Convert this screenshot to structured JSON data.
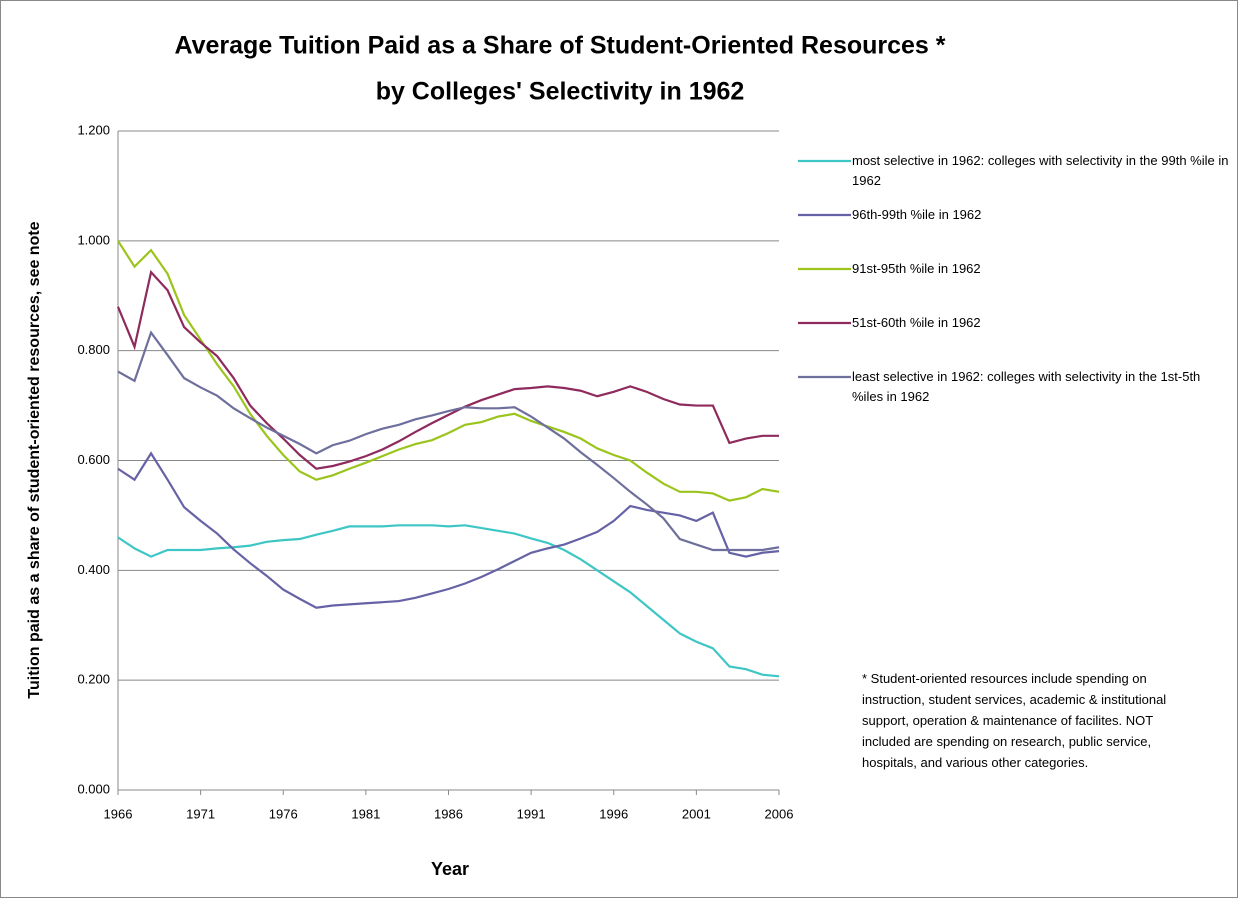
{
  "chart_data": {
    "type": "line",
    "title": "Average Tuition Paid as a Share of Student-Oriented Resources *",
    "subtitle": "by Colleges' Selectivity in 1962",
    "x_label": "Year",
    "y_label": "Tuition paid as a share of student-oriented resources, see note",
    "note": "* Student-oriented resources include spending on instruction, student services, academic & institutional support, operation & maintenance of facilites. NOT included are spending on research, public service, hospitals, and various other categories.",
    "x": [
      1966,
      1967,
      1968,
      1969,
      1970,
      1971,
      1972,
      1973,
      1974,
      1975,
      1976,
      1977,
      1978,
      1979,
      1980,
      1981,
      1982,
      1983,
      1984,
      1985,
      1986,
      1987,
      1988,
      1989,
      1990,
      1991,
      1992,
      1993,
      1994,
      1995,
      1996,
      1997,
      1998,
      1999,
      2000,
      2001,
      2002,
      2003,
      2004,
      2005,
      2006
    ],
    "xlim": [
      1966,
      2006
    ],
    "xticks": [
      1966,
      1971,
      1976,
      1981,
      1986,
      1991,
      1996,
      2001,
      2006
    ],
    "ylim": [
      0,
      1.2
    ],
    "yticks": [
      {
        "value": 0,
        "label": "0.000"
      },
      {
        "value": 0.2,
        "label": "0.200"
      },
      {
        "value": 0.4,
        "label": "0.400"
      },
      {
        "value": 0.6,
        "label": "0.600"
      },
      {
        "value": 0.8,
        "label": "0.800"
      },
      {
        "value": 1.0,
        "label": "1.000"
      },
      {
        "value": 1.2,
        "label": "1.200"
      }
    ],
    "grid": true,
    "legend": "right",
    "series": [
      {
        "name": "most selective in 1962: colleges with selectivity in the 99th %ile in 1962",
        "color": "#3ec6c6",
        "values": [
          0.46,
          0.44,
          0.425,
          0.437,
          0.437,
          0.437,
          0.44,
          0.442,
          0.445,
          0.452,
          0.455,
          0.457,
          0.465,
          0.472,
          0.48,
          0.48,
          0.48,
          0.482,
          0.482,
          0.482,
          0.48,
          0.482,
          0.477,
          0.472,
          0.467,
          0.458,
          0.45,
          0.437,
          0.42,
          0.4,
          0.38,
          0.36,
          0.335,
          0.31,
          0.285,
          0.27,
          0.258,
          0.225,
          0.22,
          0.21,
          0.207
        ]
      },
      {
        "name": "96th-99th %ile in 1962",
        "color": "#6662a6",
        "values": [
          0.585,
          0.565,
          0.613,
          0.565,
          0.515,
          0.49,
          0.467,
          0.438,
          0.413,
          0.39,
          0.365,
          0.348,
          0.332,
          0.336,
          0.338,
          0.34,
          0.342,
          0.344,
          0.35,
          0.358,
          0.366,
          0.376,
          0.388,
          0.402,
          0.417,
          0.432,
          0.44,
          0.447,
          0.458,
          0.47,
          0.49,
          0.517,
          0.51,
          0.505,
          0.5,
          0.49,
          0.505,
          0.432,
          0.425,
          0.432,
          0.435
        ]
      },
      {
        "name": "91st-95th %ile in 1962",
        "color": "#9bc41c",
        "values": [
          1.0,
          0.953,
          0.983,
          0.94,
          0.865,
          0.82,
          0.775,
          0.735,
          0.685,
          0.645,
          0.61,
          0.58,
          0.565,
          0.573,
          0.585,
          0.596,
          0.608,
          0.62,
          0.63,
          0.637,
          0.65,
          0.665,
          0.67,
          0.68,
          0.685,
          0.672,
          0.662,
          0.652,
          0.64,
          0.622,
          0.61,
          0.6,
          0.578,
          0.558,
          0.543,
          0.543,
          0.54,
          0.527,
          0.533,
          0.548,
          0.543
        ]
      },
      {
        "name": "51st-60th %ile in 1962",
        "color": "#8e2a5c",
        "values": [
          0.88,
          0.807,
          0.943,
          0.91,
          0.843,
          0.815,
          0.79,
          0.75,
          0.7,
          0.668,
          0.64,
          0.61,
          0.585,
          0.59,
          0.598,
          0.608,
          0.62,
          0.635,
          0.652,
          0.668,
          0.683,
          0.698,
          0.71,
          0.72,
          0.73,
          0.732,
          0.735,
          0.732,
          0.727,
          0.717,
          0.725,
          0.735,
          0.725,
          0.712,
          0.702,
          0.7,
          0.7,
          0.632,
          0.64,
          0.645,
          0.645
        ]
      },
      {
        "name": "least selective in 1962: colleges with selectivity in the 1st-5th %iles in 1962",
        "color": "#6e6f9c",
        "values": [
          0.762,
          0.745,
          0.833,
          0.792,
          0.75,
          0.733,
          0.718,
          0.695,
          0.677,
          0.66,
          0.645,
          0.63,
          0.613,
          0.628,
          0.636,
          0.648,
          0.658,
          0.665,
          0.675,
          0.682,
          0.69,
          0.697,
          0.695,
          0.695,
          0.697,
          0.68,
          0.66,
          0.64,
          0.615,
          0.592,
          0.568,
          0.543,
          0.52,
          0.495,
          0.457,
          0.447,
          0.437,
          0.437,
          0.437,
          0.437,
          0.442
        ]
      }
    ]
  }
}
